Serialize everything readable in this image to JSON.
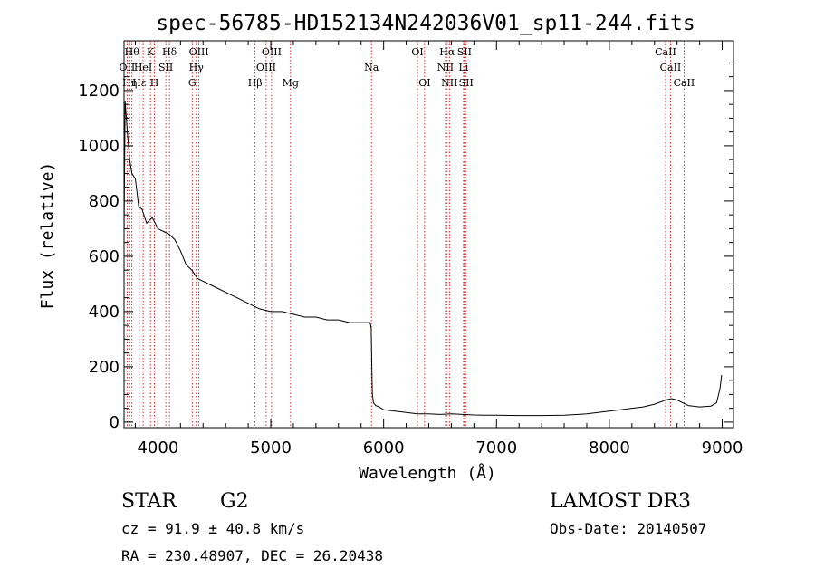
{
  "chart_data": {
    "type": "line",
    "title": "spec-56785-HD152134N242036V01_sp11-244.fits",
    "xlabel": "Wavelength (Å)",
    "ylabel": "Flux (relative)",
    "xlim": [
      3700,
      9100
    ],
    "ylim": [
      -20,
      1380
    ],
    "x_ticks": [
      4000,
      5000,
      6000,
      7000,
      8000,
      9000
    ],
    "y_ticks": [
      0,
      200,
      400,
      600,
      800,
      1000,
      1200
    ],
    "x_tick_labels": [
      "4000",
      "5000",
      "6000",
      "7000",
      "8000",
      "9000"
    ],
    "y_tick_labels": [
      "0",
      "200",
      "400",
      "600",
      "800",
      "1000",
      "1200"
    ],
    "grid": false,
    "series": [
      {
        "x": [
          3700,
          3710,
          3730,
          3750,
          3770,
          3800,
          3830,
          3860,
          3900,
          3950,
          4000,
          4050,
          4100,
          4150,
          4200,
          4250,
          4300,
          4350,
          4400,
          4500,
          4600,
          4700,
          4800,
          4900,
          5000,
          5100,
          5200,
          5300,
          5400,
          5500,
          5600,
          5700,
          5800,
          5880,
          5890,
          5895,
          5900,
          5910,
          5930,
          5960,
          6000,
          6100,
          6200,
          6300,
          6400,
          6500,
          6600,
          6700,
          6800,
          6900,
          7000,
          7200,
          7400,
          7600,
          7800,
          8000,
          8100,
          8200,
          8300,
          8400,
          8500,
          8550,
          8600,
          8650,
          8700,
          8800,
          8900,
          8950,
          8980,
          8995
        ],
        "values": [
          680,
          1160,
          1050,
          950,
          900,
          880,
          780,
          770,
          720,
          740,
          700,
          690,
          680,
          660,
          620,
          570,
          550,
          520,
          510,
          490,
          470,
          450,
          430,
          410,
          400,
          400,
          390,
          380,
          380,
          370,
          370,
          360,
          360,
          360,
          340,
          200,
          100,
          70,
          60,
          55,
          45,
          40,
          35,
          30,
          30,
          28,
          30,
          28,
          26,
          25,
          25,
          24,
          24,
          25,
          30,
          40,
          45,
          50,
          55,
          65,
          80,
          85,
          80,
          70,
          60,
          55,
          58,
          70,
          120,
          170
        ]
      }
    ],
    "line_markers": [
      {
        "wl": 3727,
        "label": "OII",
        "row": 2
      },
      {
        "wl": 3750,
        "label": "Hη",
        "row": 3
      },
      {
        "wl": 3770,
        "label": "Hθ",
        "row": 1
      },
      {
        "wl": 3835,
        "label": "Hε",
        "row": 3
      },
      {
        "wl": 3869,
        "label": "HeI",
        "row": 2
      },
      {
        "wl": 3934,
        "label": "K",
        "row": 1
      },
      {
        "wl": 3969,
        "label": "H",
        "row": 3
      },
      {
        "wl": 4070,
        "label": "SII",
        "row": 2
      },
      {
        "wl": 4102,
        "label": "Hδ",
        "row": 1
      },
      {
        "wl": 4304,
        "label": "G",
        "row": 3
      },
      {
        "wl": 4340,
        "label": "Hγ",
        "row": 2
      },
      {
        "wl": 4363,
        "label": "OIII",
        "row": 1
      },
      {
        "wl": 4861,
        "label": "Hβ",
        "row": 3
      },
      {
        "wl": 4959,
        "label": "OIII",
        "row": 2
      },
      {
        "wl": 5007,
        "label": "OIII",
        "row": 1
      },
      {
        "wl": 5175,
        "label": "Mg",
        "row": 3
      },
      {
        "wl": 5892,
        "label": "Na",
        "row": 2
      },
      {
        "wl": 6300,
        "label": "OI",
        "row": 1
      },
      {
        "wl": 6363,
        "label": "OI",
        "row": 3
      },
      {
        "wl": 6548,
        "label": "NII",
        "row": 2
      },
      {
        "wl": 6563,
        "label": "Hα",
        "row": 1
      },
      {
        "wl": 6583,
        "label": "NII",
        "row": 3
      },
      {
        "wl": 6708,
        "label": "Li",
        "row": 2
      },
      {
        "wl": 6716,
        "label": "SII",
        "row": 1
      },
      {
        "wl": 6731,
        "label": "SII",
        "row": 3
      },
      {
        "wl": 8498,
        "label": "CaII",
        "row": 1
      },
      {
        "wl": 8542,
        "label": "CaII",
        "row": 2
      },
      {
        "wl": 8662,
        "label": "CaII",
        "row": 3
      }
    ]
  },
  "info": {
    "object_class": "STAR",
    "subclass": "G2",
    "survey": "LAMOST DR3",
    "cz": "cz = 91.9 ± 40.8 km/s",
    "obs_date": "Obs-Date: 20140507",
    "coords": "RA = 230.48907, DEC =  26.20438"
  },
  "colors": {
    "axis": "#000000",
    "spectrum": "#000000",
    "marker_line": "#c00000",
    "background": "#ffffff"
  }
}
